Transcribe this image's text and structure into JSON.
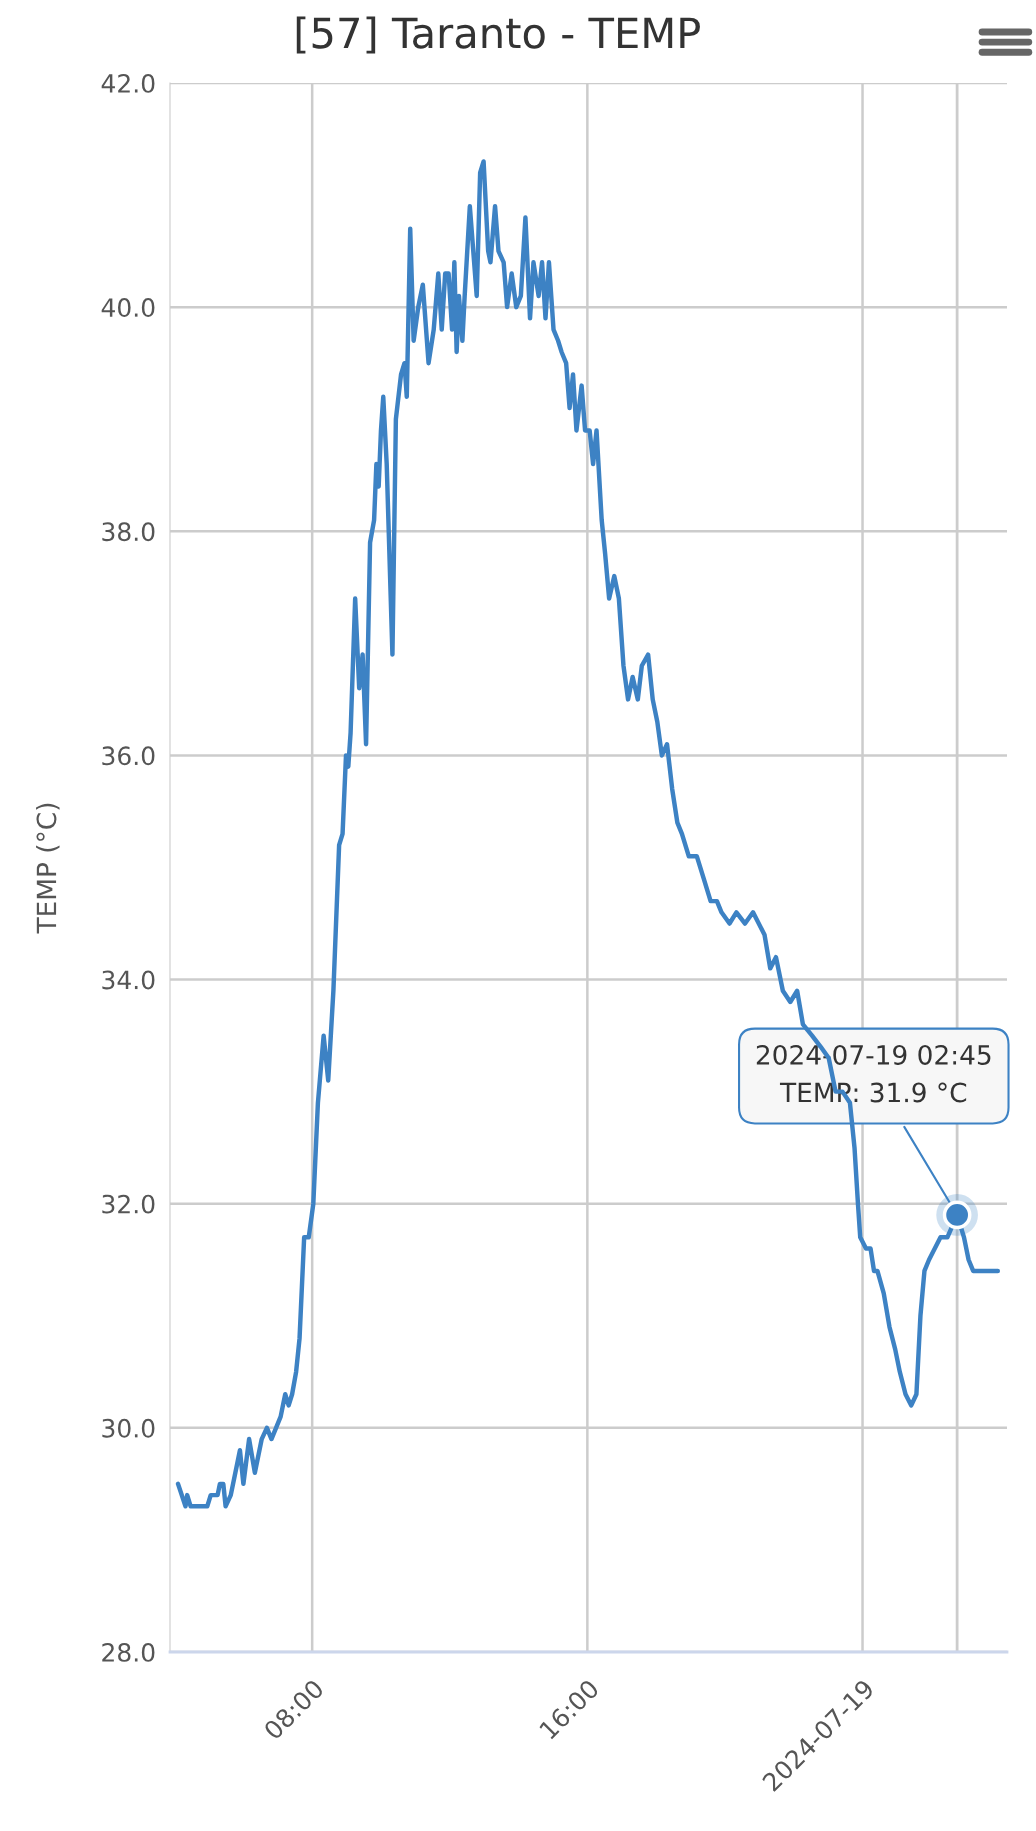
{
  "chart_data": {
    "type": "line",
    "title": "[57] Taranto - TEMP",
    "ylabel": "TEMP (°C)",
    "x": [
      "2024-07-18T04:06",
      "2024-07-18T04:19",
      "2024-07-18T04:22",
      "2024-07-18T04:28",
      "2024-07-18T04:57",
      "2024-07-18T05:03",
      "2024-07-18T05:15",
      "2024-07-18T05:19",
      "2024-07-18T05:25",
      "2024-07-18T05:29",
      "2024-07-18T05:38",
      "2024-07-18T05:50",
      "2024-07-18T05:54",
      "2024-07-18T06:00",
      "2024-07-18T06:10",
      "2024-07-18T06:20",
      "2024-07-18T06:32",
      "2024-07-18T06:41",
      "2024-07-18T06:49",
      "2024-07-18T06:57",
      "2024-07-18T07:05",
      "2024-07-18T07:13",
      "2024-07-18T07:19",
      "2024-07-18T07:25",
      "2024-07-18T07:32",
      "2024-07-18T07:38",
      "2024-07-18T07:46",
      "2024-07-18T07:54",
      "2024-07-18T08:02",
      "2024-07-18T08:10",
      "2024-07-18T08:20",
      "2024-07-18T08:28",
      "2024-07-18T08:37",
      "2024-07-18T08:47",
      "2024-07-18T08:53",
      "2024-07-18T08:59",
      "2024-07-18T09:03",
      "2024-07-18T09:07",
      "2024-07-18T09:15",
      "2024-07-18T09:22",
      "2024-07-18T09:28",
      "2024-07-18T09:34",
      "2024-07-18T09:41",
      "2024-07-18T09:48",
      "2024-07-18T09:52",
      "2024-07-18T09:56",
      "2024-07-18T10:00",
      "2024-07-18T10:04",
      "2024-07-18T10:10",
      "2024-07-18T10:20",
      "2024-07-18T10:26",
      "2024-07-18T10:35",
      "2024-07-18T10:41",
      "2024-07-18T10:45",
      "2024-07-18T10:51",
      "2024-07-18T10:57",
      "2024-07-18T11:05",
      "2024-07-18T11:13",
      "2024-07-18T11:23",
      "2024-07-18T11:32",
      "2024-07-18T11:40",
      "2024-07-18T11:46",
      "2024-07-18T11:52",
      "2024-07-18T11:58",
      "2024-07-18T12:04",
      "2024-07-18T12:08",
      "2024-07-18T12:12",
      "2024-07-18T12:16",
      "2024-07-18T12:22",
      "2024-07-18T12:26",
      "2024-07-18T12:35",
      "2024-07-18T12:41",
      "2024-07-18T12:47",
      "2024-07-18T12:53",
      "2024-07-18T12:59",
      "2024-07-18T13:07",
      "2024-07-18T13:11",
      "2024-07-18T13:19",
      "2024-07-18T13:25",
      "2024-07-18T13:34",
      "2024-07-18T13:40",
      "2024-07-18T13:48",
      "2024-07-18T13:56",
      "2024-07-18T14:04",
      "2024-07-18T14:12",
      "2024-07-18T14:20",
      "2024-07-18T14:26",
      "2024-07-18T14:35",
      "2024-07-18T14:41",
      "2024-07-18T14:47",
      "2024-07-18T14:53",
      "2024-07-18T15:01",
      "2024-07-18T15:09",
      "2024-07-18T15:15",
      "2024-07-18T15:23",
      "2024-07-18T15:29",
      "2024-07-18T15:35",
      "2024-07-18T15:41",
      "2024-07-18T15:50",
      "2024-07-18T15:56",
      "2024-07-18T16:04",
      "2024-07-18T16:10",
      "2024-07-18T16:16",
      "2024-07-18T16:25",
      "2024-07-18T16:31",
      "2024-07-18T16:38",
      "2024-07-18T16:47",
      "2024-07-18T16:55",
      "2024-07-18T17:03",
      "2024-07-18T17:11",
      "2024-07-18T17:19",
      "2024-07-18T17:28",
      "2024-07-18T17:35",
      "2024-07-18T17:46",
      "2024-07-18T17:54",
      "2024-07-18T18:02",
      "2024-07-18T18:10",
      "2024-07-18T18:19",
      "2024-07-18T18:28",
      "2024-07-18T18:37",
      "2024-07-18T18:45",
      "2024-07-18T18:57",
      "2024-07-18T19:11",
      "2024-07-18T19:23",
      "2024-07-18T19:35",
      "2024-07-18T19:46",
      "2024-07-18T19:54",
      "2024-07-18T20:08",
      "2024-07-18T20:20",
      "2024-07-18T20:35",
      "2024-07-18T20:49",
      "2024-07-18T21:09",
      "2024-07-18T21:19",
      "2024-07-18T21:29",
      "2024-07-18T21:41",
      "2024-07-18T21:54",
      "2024-07-18T22:06",
      "2024-07-18T22:16",
      "2024-07-18T22:32",
      "2024-07-18T22:47",
      "2024-07-18T23:01",
      "2024-07-18T23:13",
      "2024-07-18T23:25",
      "2024-07-18T23:38",
      "2024-07-18T23:46",
      "2024-07-18T23:52",
      "2024-07-18T23:56",
      "2024-07-19T00:06",
      "2024-07-19T00:14",
      "2024-07-19T00:20",
      "2024-07-19T00:26",
      "2024-07-19T00:37",
      "2024-07-19T00:47",
      "2024-07-19T00:57",
      "2024-07-19T01:05",
      "2024-07-19T01:15",
      "2024-07-19T01:25",
      "2024-07-19T01:34",
      "2024-07-19T01:41",
      "2024-07-19T01:48",
      "2024-07-19T01:56",
      "2024-07-19T02:06",
      "2024-07-19T02:16",
      "2024-07-19T02:28",
      "2024-07-19T02:45",
      "2024-07-19T02:57",
      "2024-07-19T03:05",
      "2024-07-19T03:13",
      "2024-07-19T03:25",
      "2024-07-19T03:56"
    ],
    "series": [
      {
        "color": "#3d82c4",
        "values": [
          29.5,
          29.3,
          29.4,
          29.3,
          29.3,
          29.4,
          29.4,
          29.5,
          29.5,
          29.3,
          29.4,
          29.7,
          29.8,
          29.5,
          29.9,
          29.6,
          29.9,
          30.0,
          29.9,
          30.0,
          30.1,
          30.3,
          30.2,
          30.3,
          30.5,
          30.8,
          31.7,
          31.7,
          32.0,
          32.9,
          33.5,
          33.1,
          33.9,
          35.2,
          35.3,
          36.0,
          35.9,
          36.2,
          37.4,
          36.6,
          36.9,
          36.1,
          37.9,
          38.1,
          38.6,
          38.4,
          38.9,
          39.2,
          38.6,
          36.9,
          39.0,
          39.4,
          39.5,
          39.2,
          40.7,
          39.7,
          40.0,
          40.2,
          39.5,
          39.8,
          40.3,
          39.8,
          40.3,
          40.3,
          39.8,
          40.4,
          39.6,
          40.1,
          39.7,
          40.1,
          40.9,
          40.5,
          40.1,
          41.2,
          41.3,
          40.5,
          40.4,
          40.9,
          40.5,
          40.4,
          40.0,
          40.3,
          40.0,
          40.1,
          40.8,
          39.9,
          40.4,
          40.1,
          40.4,
          39.9,
          40.4,
          39.8,
          39.7,
          39.6,
          39.5,
          39.1,
          39.4,
          38.9,
          39.3,
          38.9,
          38.9,
          38.6,
          38.9,
          38.1,
          37.8,
          37.4,
          37.6,
          37.4,
          36.8,
          36.5,
          36.7,
          36.5,
          36.8,
          36.9,
          36.5,
          36.3,
          36.0,
          36.1,
          35.7,
          35.4,
          35.3,
          35.1,
          35.1,
          34.9,
          34.7,
          34.7,
          34.6,
          34.5,
          34.6,
          34.5,
          34.6,
          34.4,
          34.1,
          34.2,
          33.9,
          33.8,
          33.9,
          33.6,
          33.5,
          33.4,
          33.3,
          33.0,
          33.0,
          32.9,
          32.5,
          32.0,
          31.7,
          31.6,
          31.6,
          31.4,
          31.4,
          31.2,
          30.9,
          30.7,
          30.5,
          30.3,
          30.2,
          30.3,
          31.0,
          31.4,
          31.5,
          31.6,
          31.7,
          31.7,
          31.9,
          31.7,
          31.5,
          31.4,
          31.4,
          31.4
        ]
      }
    ],
    "xlim": [
      "2024-07-18T03:52",
      "2024-07-19T04:12"
    ],
    "xticks": [
      {
        "value": "2024-07-18T08:00",
        "label": "08:00"
      },
      {
        "value": "2024-07-18T16:00",
        "label": "16:00"
      },
      {
        "value": "2024-07-19T00:00",
        "label": "2024-07-19"
      }
    ],
    "ylim": [
      28,
      42
    ],
    "yticks": [
      {
        "value": 28,
        "label": "28.0"
      },
      {
        "value": 30,
        "label": "30.0"
      },
      {
        "value": 32,
        "label": "32.0"
      },
      {
        "value": 34,
        "label": "34.0"
      },
      {
        "value": 36,
        "label": "36.0"
      },
      {
        "value": 38,
        "label": "38.0"
      },
      {
        "value": 40,
        "label": "40.0"
      },
      {
        "value": 42,
        "label": "42.0"
      }
    ],
    "grid": true,
    "marker": "none",
    "line_style": "solid",
    "ref_lines": [
      {
        "axis": "x",
        "value": "2024-07-19T02:45",
        "label": null,
        "color": "#cccccc"
      }
    ],
    "annotations": [
      {
        "text": "2024-07-19 02:45\nTEMP: 31.9 °C",
        "x": "2024-07-19T02:45",
        "y": 31.9
      }
    ]
  }
}
